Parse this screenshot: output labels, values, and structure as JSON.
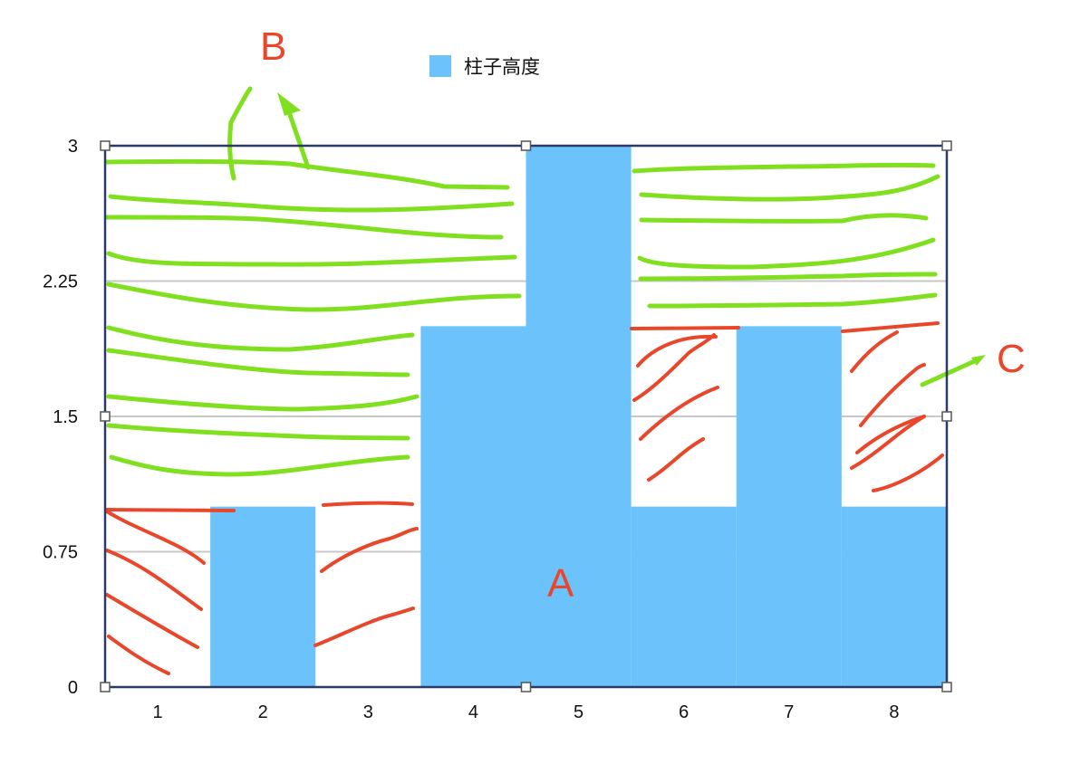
{
  "chart_data": {
    "type": "bar",
    "categories": [
      "1",
      "2",
      "3",
      "4",
      "5",
      "6",
      "7",
      "8"
    ],
    "series": [
      {
        "name": "柱子高度",
        "values": [
          0,
          1,
          0,
          2,
          3,
          1,
          2,
          1
        ]
      }
    ],
    "ylim": [
      0,
      3
    ],
    "yticks": [
      "0",
      "0.75",
      "1.5",
      "2.25",
      "3"
    ],
    "grid": true,
    "legend": "top-center",
    "colors": {
      "bar": "#6cc3fb",
      "gridline": "#c8c8c8",
      "frame": "#2b3a67",
      "annotation_red": "#e8472b",
      "annotation_green": "#80e020"
    },
    "annotations": {
      "a": "A",
      "b": "B",
      "c": "C"
    }
  }
}
